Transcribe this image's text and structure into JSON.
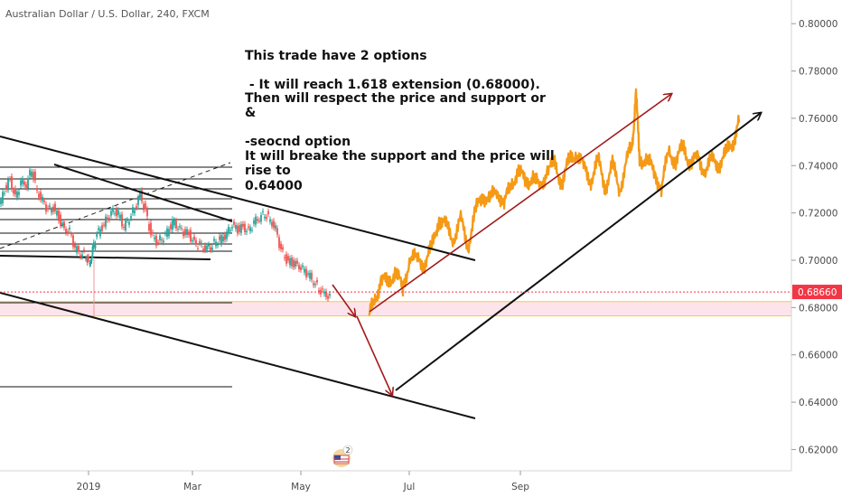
{
  "chart_data": {
    "type": "line",
    "title": "Australian Dollar / U.S. Dollar, 240, FXCM",
    "x_ticks": [
      "2019",
      "Mar",
      "May",
      "Jul",
      "Sep"
    ],
    "y_ticks": [
      "0.80000",
      "0.78000",
      "0.76000",
      "0.74000",
      "0.72000",
      "0.70000",
      "0.68000",
      "0.66000",
      "0.64000",
      "0.62000"
    ],
    "y_tick_values": [
      0.8,
      0.78,
      0.76,
      0.74,
      0.72,
      0.7,
      0.68,
      0.66,
      0.64,
      0.62
    ],
    "ylim": [
      0.611,
      0.81
    ],
    "current_price": {
      "label": "0.68660",
      "value": 0.6866,
      "color": "#f23645"
    },
    "support_zone": {
      "low": 0.6765,
      "high": 0.6825,
      "fill": "#fde4ea",
      "border": "#f7c948"
    },
    "historical_series": {
      "name": "",
      "color_up": "#26a69a",
      "color_down": "#ef5350",
      "x": [
        0,
        6,
        12,
        18,
        24,
        30,
        36,
        42,
        48,
        54,
        60,
        66,
        72,
        78,
        84,
        90,
        96,
        100,
        103,
        108,
        114,
        120,
        126,
        132,
        138,
        144,
        150,
        156,
        162,
        168,
        174,
        180,
        186,
        192,
        198,
        204,
        210,
        216,
        222,
        228,
        234,
        240,
        246,
        252,
        258,
        264,
        270,
        276,
        282,
        288,
        294,
        300,
        306,
        312,
        318,
        324,
        330,
        336,
        342,
        348,
        354,
        360,
        366
      ],
      "y": [
        0.7225,
        0.73,
        0.734,
        0.726,
        0.733,
        0.732,
        0.739,
        0.729,
        0.725,
        0.721,
        0.722,
        0.718,
        0.713,
        0.712,
        0.705,
        0.703,
        0.702,
        0.698,
        0.704,
        0.711,
        0.714,
        0.718,
        0.721,
        0.7195,
        0.714,
        0.718,
        0.722,
        0.728,
        0.72,
        0.711,
        0.708,
        0.709,
        0.712,
        0.716,
        0.714,
        0.712,
        0.711,
        0.707,
        0.706,
        0.705,
        0.706,
        0.708,
        0.709,
        0.711,
        0.715,
        0.713,
        0.714,
        0.712,
        0.716,
        0.718,
        0.72,
        0.717,
        0.713,
        0.704,
        0.7,
        0.699,
        0.698,
        0.696,
        0.694,
        0.691,
        0.688,
        0.686,
        0.684
      ]
    },
    "projection_series": {
      "name": "",
      "color": "#f59a16",
      "x": [
        408,
        415,
        422,
        430,
        438,
        446,
        454,
        462,
        470,
        478,
        486,
        494,
        502,
        510,
        518,
        526,
        534,
        542,
        550,
        558,
        566,
        574,
        582,
        590,
        598,
        606,
        614,
        622,
        630,
        638,
        646,
        654,
        662,
        670,
        678,
        686,
        694,
        700,
        704,
        708,
        716,
        724,
        732,
        740,
        748,
        756,
        764,
        772,
        780,
        788,
        796,
        804,
        812,
        818
      ],
      "y": [
        0.676,
        0.683,
        0.692,
        0.69,
        0.696,
        0.687,
        0.702,
        0.7,
        0.699,
        0.705,
        0.718,
        0.714,
        0.709,
        0.717,
        0.706,
        0.72,
        0.728,
        0.725,
        0.73,
        0.724,
        0.732,
        0.738,
        0.733,
        0.735,
        0.73,
        0.739,
        0.74,
        0.733,
        0.742,
        0.746,
        0.739,
        0.734,
        0.742,
        0.731,
        0.74,
        0.73,
        0.742,
        0.75,
        0.77,
        0.743,
        0.742,
        0.738,
        0.73,
        0.746,
        0.742,
        0.748,
        0.741,
        0.743,
        0.738,
        0.742,
        0.741,
        0.745,
        0.751,
        0.758
      ]
    },
    "annotations": [
      "This trade have 2 options",
      " - It will reach 1.618 extension (0.68000).",
      "Then will respect the price and support or",
      "&",
      "-seocnd option",
      "It will breake the support and the price will",
      "rise to",
      "0.64000"
    ],
    "grid": false,
    "legend": "none"
  },
  "colors": {
    "arrow_red": "#a11b1b",
    "trend_black": "#111111",
    "projection_orange": "#f59a16",
    "price_red": "#f23645",
    "axis_text": "#4a4a4a"
  },
  "icons": {
    "logo": "tradingview-flag-logo-icon",
    "badge_count": "2"
  }
}
